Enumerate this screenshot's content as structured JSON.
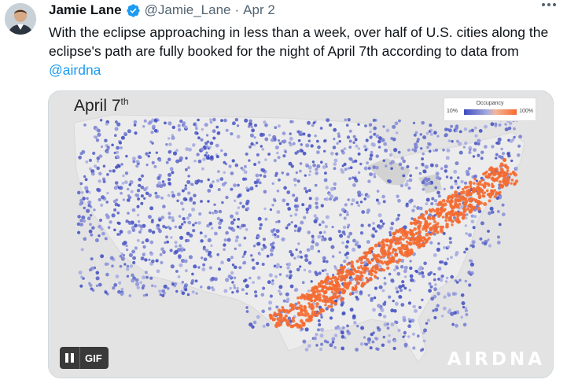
{
  "tweet": {
    "author_name": "Jamie Lane",
    "handle": "@Jamie_Lane",
    "separator": "·",
    "date": "Apr 2",
    "text_before": "With the eclipse approaching in less than a week, over half of U.S. cities along the eclipse's path are fully booked for the night of April 7th according to data from ",
    "mention": "@airdna",
    "verified_icon": "verified-badge-icon",
    "more_icon": "more-dots-icon",
    "accent_color": "#1d9bf0"
  },
  "media": {
    "map_title_main": "April 7",
    "map_title_suffix": "th",
    "legend": {
      "title": "Occupancy",
      "min_label": "10%",
      "max_label": "100%",
      "low_color": "#3d4bbf",
      "high_color": "#f56a30"
    },
    "gif_label": "GIF",
    "pause_icon": "pause-icon",
    "brand": "AIRDNA"
  }
}
